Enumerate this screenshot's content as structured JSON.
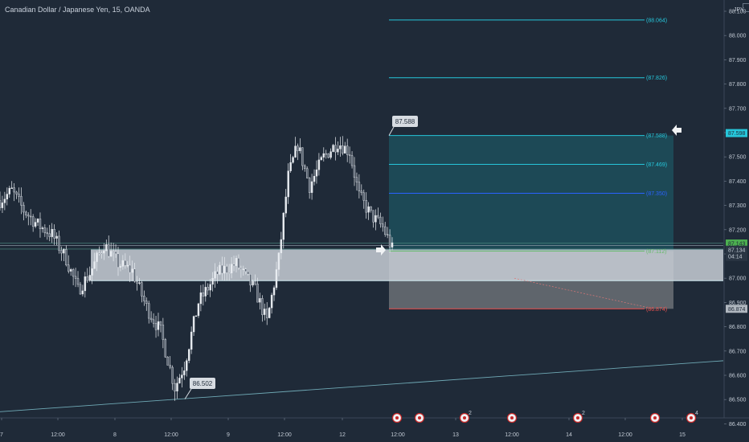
{
  "header": {
    "title": "Canadian Dollar / Japanese Yen, 15, OANDA"
  },
  "currency_label": "JPY",
  "colors": {
    "background": "#1f2a38",
    "candle": "#e8ecf1",
    "fib_cyan": "#26c6da",
    "fib_blue": "#2962ff",
    "fib_green": "#66bb6a",
    "fib_red": "#ef5350",
    "zone": "#c8ced6",
    "target_zone": "#1d4f5c",
    "stop_zone": "#6b7076",
    "trendline": "#6fa9b5"
  },
  "chart_data": {
    "type": "candlestick",
    "symbol": "CADJPY",
    "interval": "15",
    "ylim": [
      86.38,
      88.12
    ],
    "y_ticks": [
      "88.100",
      "88.000",
      "87.900",
      "87.800",
      "87.700",
      "87.600",
      "87.500",
      "87.400",
      "87.300",
      "87.200",
      "87.100",
      "87.000",
      "86.900",
      "86.800",
      "86.700",
      "86.600",
      "86.500",
      "86.400"
    ],
    "x_ticks": [
      "7",
      "12:00",
      "8",
      "12:00",
      "9",
      "12:00",
      "12",
      "12:00",
      "13",
      "12:00",
      "14",
      "12:00",
      "15"
    ],
    "price_path": [
      {
        "i": 0,
        "p": 87.32
      },
      {
        "i": 5,
        "p": 87.36
      },
      {
        "i": 10,
        "p": 87.28
      },
      {
        "i": 16,
        "p": 87.22
      },
      {
        "i": 22,
        "p": 87.18
      },
      {
        "i": 28,
        "p": 87.08
      },
      {
        "i": 33,
        "p": 86.95
      },
      {
        "i": 38,
        "p": 87.02
      },
      {
        "i": 44,
        "p": 87.14
      },
      {
        "i": 50,
        "p": 87.06
      },
      {
        "i": 56,
        "p": 87.03
      },
      {
        "i": 62,
        "p": 86.88
      },
      {
        "i": 68,
        "p": 86.78
      },
      {
        "i": 74,
        "p": 86.55
      },
      {
        "i": 78,
        "p": 86.64
      },
      {
        "i": 84,
        "p": 86.9
      },
      {
        "i": 92,
        "p": 87.02
      },
      {
        "i": 100,
        "p": 87.06
      },
      {
        "i": 108,
        "p": 86.95
      },
      {
        "i": 113,
        "p": 86.82
      },
      {
        "i": 118,
        "p": 87.08
      },
      {
        "i": 122,
        "p": 87.42
      },
      {
        "i": 126,
        "p": 87.55
      },
      {
        "i": 131,
        "p": 87.38
      },
      {
        "i": 137,
        "p": 87.5
      },
      {
        "i": 143,
        "p": 87.56
      },
      {
        "i": 148,
        "p": 87.52
      },
      {
        "i": 152,
        "p": 87.34
      },
      {
        "i": 157,
        "p": 87.26
      },
      {
        "i": 162,
        "p": 87.21
      },
      {
        "i": 166,
        "p": 87.12
      }
    ],
    "levels": {
      "current_price": "87.134",
      "countdown": "04:14",
      "highlight_1": "87.143",
      "highlight_2": "87.598",
      "stop": "86.874"
    },
    "fib_levels": [
      {
        "label": "(88.064)",
        "value": 88.064,
        "color": "cyan"
      },
      {
        "label": "(87.826)",
        "value": 87.826,
        "color": "cyan"
      },
      {
        "label": "(87.588)",
        "value": 87.588,
        "color": "cyan"
      },
      {
        "label": "(87.469)",
        "value": 87.469,
        "color": "cyan"
      },
      {
        "label": "(87.350)",
        "value": 87.35,
        "color": "blue"
      },
      {
        "label": "(87.112)",
        "value": 87.112,
        "color": "green"
      },
      {
        "label": "(86.874)",
        "value": 86.874,
        "color": "red"
      }
    ],
    "zone": {
      "top": 87.118,
      "bottom": 86.99
    },
    "callouts": [
      {
        "text": "87.588",
        "value": 87.588
      },
      {
        "text": "86.502",
        "value": 86.502
      }
    ],
    "trendline": {
      "start": 86.45,
      "end": 86.66
    },
    "events": [
      {
        "icon": "calendar-event-icon"
      },
      {
        "icon": "calendar-event-icon"
      },
      {
        "icon": "calendar-event-icon",
        "count": "2"
      },
      {
        "icon": "calendar-event-icon"
      },
      {
        "icon": "calendar-event-icon",
        "count": "2"
      },
      {
        "icon": "calendar-event-icon"
      },
      {
        "icon": "calendar-event-icon",
        "count": "4"
      }
    ]
  }
}
